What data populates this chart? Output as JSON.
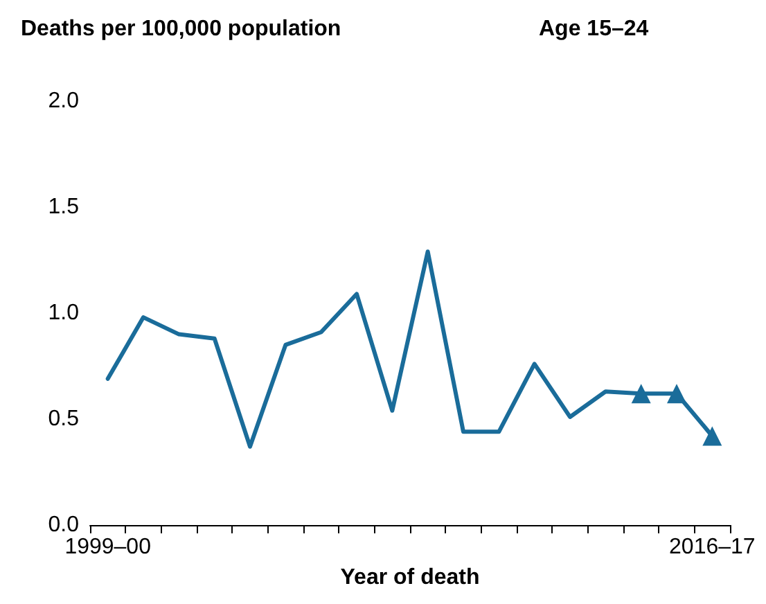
{
  "chart_data": {
    "type": "line",
    "title": "Deaths per 100,000 population",
    "subtitle": "Age 15–24",
    "xlabel": "Year of death",
    "categories": [
      "1999–00",
      null,
      null,
      null,
      null,
      null,
      null,
      null,
      null,
      null,
      null,
      null,
      null,
      null,
      null,
      null,
      null,
      "2016–17"
    ],
    "series": [
      {
        "color": "#1a6c9a",
        "marker": "none",
        "values": [
          0.69,
          0.98,
          0.9,
          0.88,
          0.37,
          0.85,
          0.91,
          1.09,
          0.54,
          1.29,
          0.44,
          0.44,
          0.76,
          0.51,
          0.63,
          0.62,
          0.62,
          0.42
        ]
      },
      {
        "type": "scatter",
        "color": "#1a6c9a",
        "marker": "triangle",
        "values": [
          null,
          null,
          null,
          null,
          null,
          null,
          null,
          null,
          null,
          null,
          null,
          null,
          null,
          null,
          null,
          0.62,
          0.62,
          0.42
        ]
      }
    ],
    "ylim": [
      0,
      2
    ],
    "yticks": [
      {
        "value": 0,
        "label": "0.0"
      },
      {
        "value": 0.5,
        "label": "0.5"
      },
      {
        "value": 1,
        "label": "1.0"
      },
      {
        "value": 1.5,
        "label": "1.5"
      },
      {
        "value": 2,
        "label": "2.0"
      }
    ],
    "grid": false,
    "line_style": "solid"
  }
}
